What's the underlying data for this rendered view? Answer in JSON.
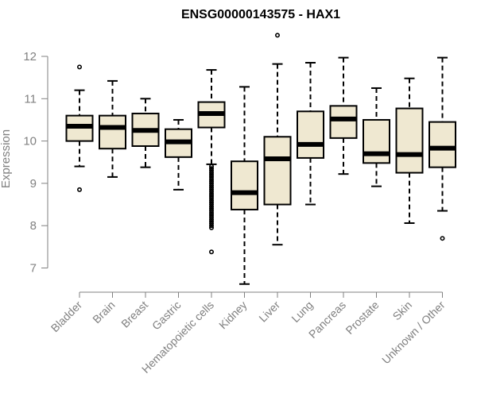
{
  "chart_data": {
    "type": "boxplot",
    "title": "ENSG00000143575 - HAX1",
    "ylabel": "Expression",
    "xlabel": "",
    "ylim": [
      6.5,
      12.5
    ],
    "yticks": [
      7,
      8,
      9,
      10,
      11,
      12
    ],
    "grid": false,
    "colors": {
      "box_fill": "#efe8d1",
      "stroke": "#000000",
      "axis": "#808080"
    },
    "categories": [
      "Bladder",
      "Brain",
      "Breast",
      "Gastric",
      "Hematopoietic cells",
      "Kidney",
      "Liver",
      "Lung",
      "Pancreas",
      "Prostate",
      "Skin",
      "Unknown / Other"
    ],
    "boxes": [
      {
        "whisker_low": 9.4,
        "q1": 10.0,
        "median": 10.35,
        "q3": 10.6,
        "whisker_high": 11.2,
        "outliers": [
          11.75,
          8.85
        ]
      },
      {
        "whisker_low": 9.15,
        "q1": 9.82,
        "median": 10.32,
        "q3": 10.6,
        "whisker_high": 11.42,
        "outliers": []
      },
      {
        "whisker_low": 9.38,
        "q1": 9.88,
        "median": 10.25,
        "q3": 10.65,
        "whisker_high": 11.0,
        "outliers": []
      },
      {
        "whisker_low": 8.85,
        "q1": 9.62,
        "median": 9.98,
        "q3": 10.28,
        "whisker_high": 10.5,
        "outliers": []
      },
      {
        "whisker_low": 9.45,
        "q1": 10.32,
        "median": 10.65,
        "q3": 10.92,
        "whisker_high": 11.68,
        "outliers": [
          9.4,
          9.35,
          9.3,
          9.25,
          9.2,
          9.15,
          9.1,
          9.05,
          9.0,
          8.95,
          8.9,
          8.85,
          8.8,
          8.75,
          8.7,
          8.65,
          8.6,
          8.55,
          8.5,
          8.45,
          8.4,
          8.35,
          8.3,
          8.25,
          8.2,
          8.15,
          8.1,
          8.05,
          8.0,
          7.95,
          7.38
        ]
      },
      {
        "whisker_low": 6.62,
        "q1": 8.38,
        "median": 8.78,
        "q3": 9.52,
        "whisker_high": 11.28,
        "outliers": []
      },
      {
        "whisker_low": 7.55,
        "q1": 8.5,
        "median": 9.58,
        "q3": 10.1,
        "whisker_high": 11.82,
        "outliers": [
          12.5
        ]
      },
      {
        "whisker_low": 8.5,
        "q1": 9.6,
        "median": 9.92,
        "q3": 10.7,
        "whisker_high": 11.85,
        "outliers": []
      },
      {
        "whisker_low": 9.22,
        "q1": 10.07,
        "median": 10.52,
        "q3": 10.83,
        "whisker_high": 11.97,
        "outliers": []
      },
      {
        "whisker_low": 8.93,
        "q1": 9.48,
        "median": 9.7,
        "q3": 10.5,
        "whisker_high": 11.25,
        "outliers": []
      },
      {
        "whisker_low": 8.06,
        "q1": 9.25,
        "median": 9.68,
        "q3": 10.77,
        "whisker_high": 11.48,
        "outliers": []
      },
      {
        "whisker_low": 8.35,
        "q1": 9.38,
        "median": 9.83,
        "q3": 10.45,
        "whisker_high": 11.97,
        "outliers": [
          7.7
        ]
      }
    ]
  }
}
